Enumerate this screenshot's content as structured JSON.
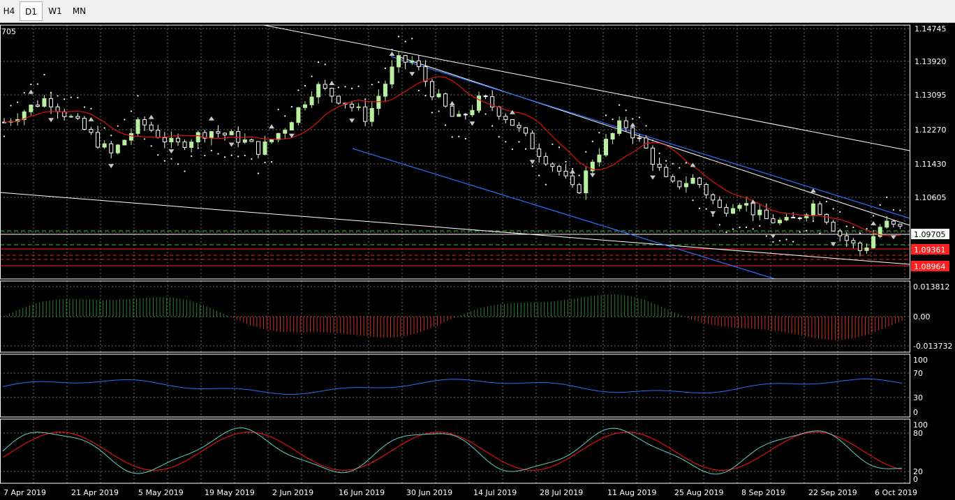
{
  "timeframes": [
    "H4",
    "D1",
    "W1",
    "MN"
  ],
  "active_timeframe": "D1",
  "main_chart": {
    "corner_label": "705",
    "price_axis": [
      "1.14745",
      "1.13920",
      "1.13095",
      "1.12270",
      "1.11430",
      "1.10605"
    ],
    "price_range": [
      1.0852,
      1.148
    ],
    "current_price": "1.09705",
    "level_labels": [
      {
        "text": "1.09361",
        "price": 1.09361
      },
      {
        "text": "1.08964",
        "price": 1.08964
      }
    ]
  },
  "macd_panel": {
    "labels": [
      "0.013812",
      "0.00",
      "-0.013732"
    ]
  },
  "rsi_panel": {
    "labels": [
      "100",
      "70",
      "30",
      "0"
    ]
  },
  "stoch_panel": {
    "labels": [
      "100",
      "80",
      "20",
      "0"
    ]
  },
  "time_axis": [
    "7 Apr 2019",
    "21 Apr 2019",
    "5 May 2019",
    "19 May 2019",
    "2 Jun 2019",
    "16 Jun 2019",
    "30 Jun 2019",
    "14 Jul 2019",
    "28 Jul 2019",
    "11 Aug 2019",
    "25 Aug 2019",
    "8 Sep 2019",
    "22 Sep 2019",
    "6 Oct 2019"
  ],
  "colors": {
    "background": "#000000",
    "grid": "#6b6b6b",
    "bull_candle": "#b8f0a0",
    "bear_candle": "#ffffff",
    "ma_line": "#e01010",
    "channel_line": "#2a6fff",
    "trend_line": "#ffffff",
    "macd_pos": "#2e7d2e",
    "macd_neg": "#d03020",
    "rsi_line": "#2a6fff",
    "stoch_main": "#5fd0c0",
    "stoch_signal": "#e01010",
    "level_red": "#ff2020",
    "level_green": "#40c040"
  }
}
